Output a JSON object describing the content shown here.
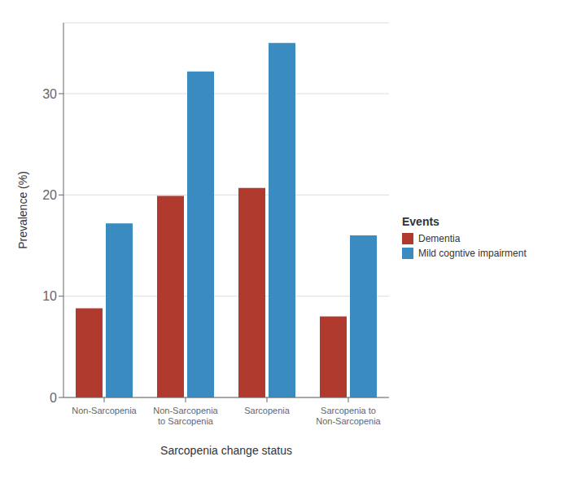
{
  "chart_data": {
    "type": "bar",
    "categories": [
      "Non-Sarcopenia",
      "Non-Sarcopenia to Sarcopenia",
      "Sarcopenia",
      "Sarcopenia to Non-Sarcopenia"
    ],
    "series": [
      {
        "name": "Dementia",
        "color": "#b03a2e",
        "values": [
          8.8,
          19.9,
          20.7,
          8.0
        ]
      },
      {
        "name": "Mild cogntive impairment",
        "color": "#3a8bbf",
        "values": [
          17.2,
          32.2,
          35.0,
          16.0
        ]
      }
    ],
    "xlabel": "Sarcopenia change status",
    "ylabel": "Prevalence (%)",
    "legend_title": "Events",
    "ylim": [
      0,
      37
    ],
    "yticks": [
      0,
      10,
      20,
      30
    ],
    "grid": true,
    "legend": "right"
  }
}
